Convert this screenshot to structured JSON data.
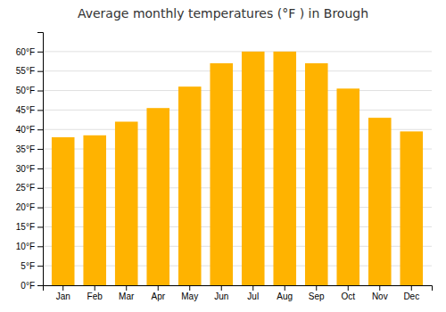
{
  "chart_data": {
    "type": "bar",
    "title": "Average monthly temperatures (°F ) in Brough",
    "categories": [
      "Jan",
      "Feb",
      "Mar",
      "Apr",
      "May",
      "Jun",
      "Jul",
      "Aug",
      "Sep",
      "Oct",
      "Nov",
      "Dec"
    ],
    "values": [
      38,
      38.5,
      42,
      45.5,
      51,
      57,
      60,
      60,
      57,
      50.5,
      43,
      39.5
    ],
    "color": "#FFB300",
    "ylim": [
      0,
      65
    ],
    "yticks": [
      {
        "value": 0,
        "label": "0°F"
      },
      {
        "value": 5,
        "label": "5°F"
      },
      {
        "value": 10,
        "label": "10°F"
      },
      {
        "value": 15,
        "label": "15°F"
      },
      {
        "value": 20,
        "label": "20°F"
      },
      {
        "value": 25,
        "label": "25°F"
      },
      {
        "value": 30,
        "label": "30°F"
      },
      {
        "value": 35,
        "label": "35°F"
      },
      {
        "value": 40,
        "label": "40°F"
      },
      {
        "value": 45,
        "label": "45°F"
      },
      {
        "value": 50,
        "label": "50°F"
      },
      {
        "value": 55,
        "label": "55°F"
      },
      {
        "value": 60,
        "label": "60°F"
      }
    ],
    "grid": true
  }
}
